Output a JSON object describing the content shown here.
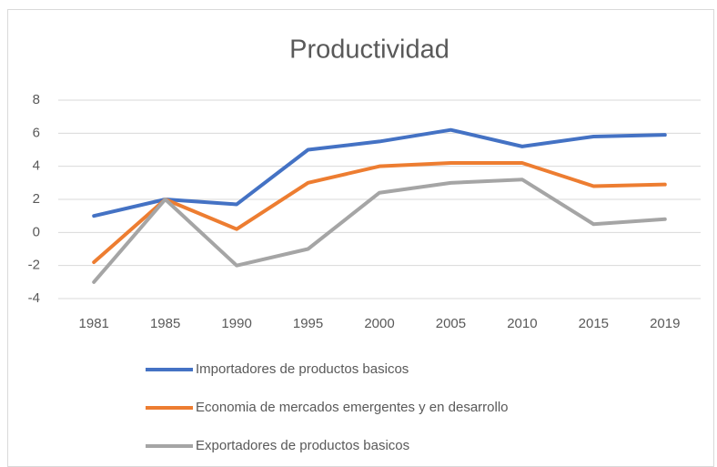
{
  "chart_data": {
    "type": "line",
    "title": "Productividad",
    "categories": [
      "1981",
      "1985",
      "1990",
      "1995",
      "2000",
      "2005",
      "2010",
      "2015",
      "2019"
    ],
    "series": [
      {
        "name": "Importadores de productos basicos",
        "color": "#4472c4",
        "values": [
          1.0,
          2.0,
          1.7,
          5.0,
          5.5,
          6.2,
          5.2,
          5.8,
          5.9
        ]
      },
      {
        "name": "Economia de mercados emergentes y en desarrollo",
        "color": "#ed7d31",
        "values": [
          -1.8,
          2.0,
          0.2,
          3.0,
          4.0,
          4.2,
          4.2,
          2.8,
          2.9
        ]
      },
      {
        "name": "Exportadores de productos basicos",
        "color": "#a5a5a5",
        "values": [
          -3.0,
          2.0,
          -2.0,
          -1.0,
          2.4,
          3.0,
          3.2,
          0.5,
          0.8
        ]
      }
    ],
    "ylim": [
      -4,
      8
    ],
    "yticks": [
      -4,
      -2,
      0,
      2,
      4,
      6,
      8
    ],
    "grid": true,
    "legend": "bottom"
  }
}
